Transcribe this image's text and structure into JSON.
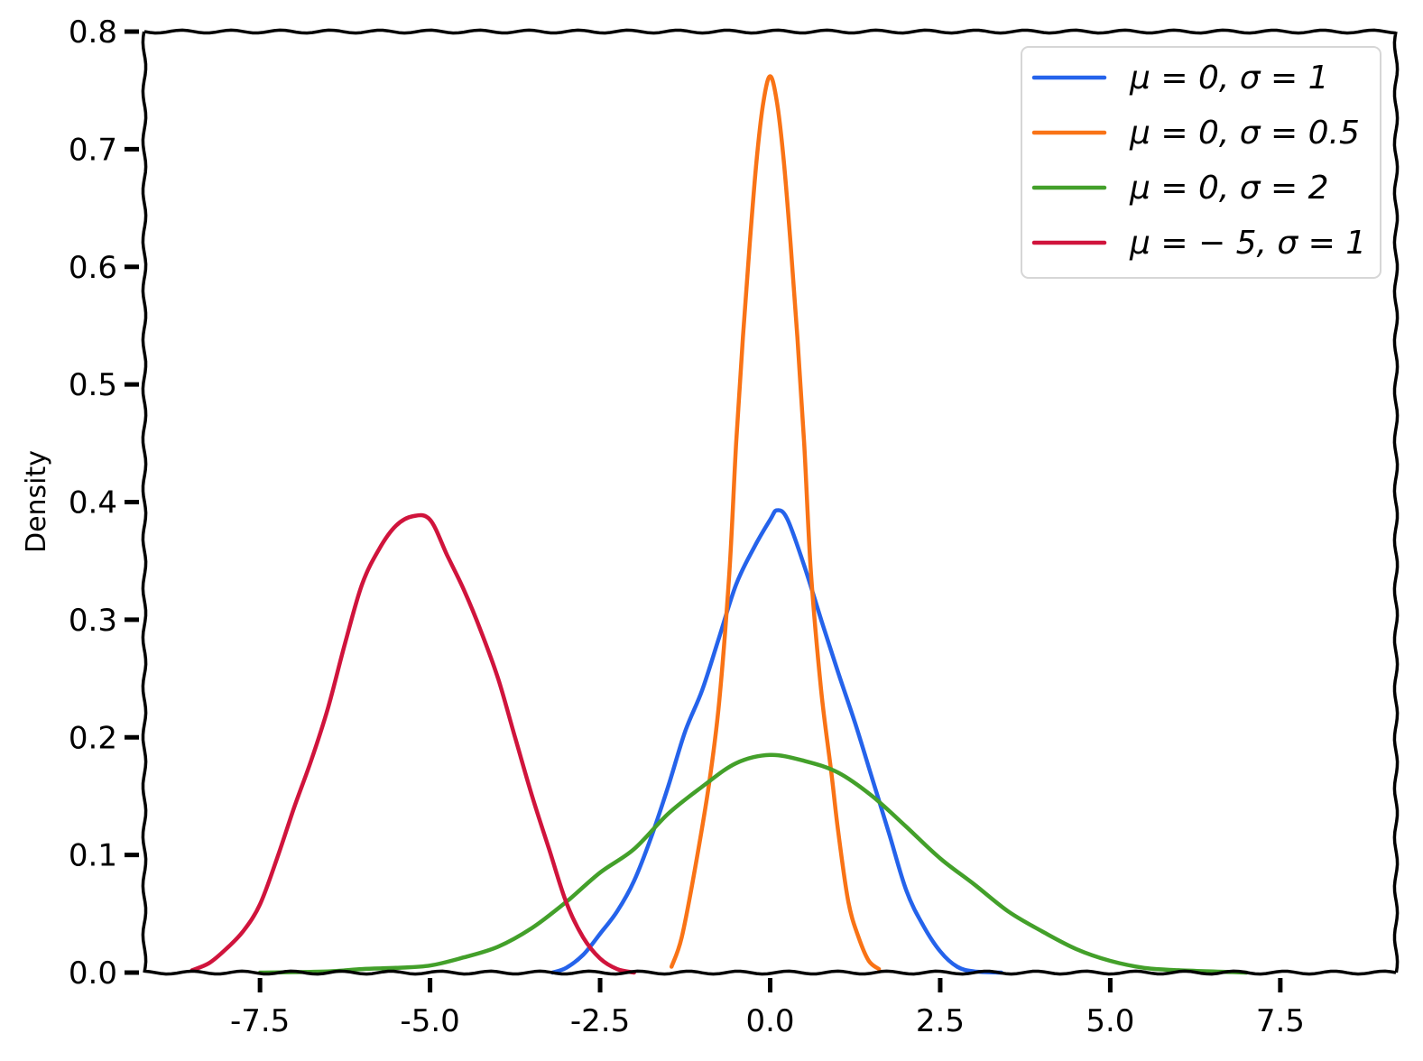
{
  "chart_data": {
    "type": "line",
    "title": "",
    "xlabel": "",
    "ylabel": "Density",
    "xlim": [
      -9.2,
      9.2
    ],
    "ylim": [
      0.0,
      0.8
    ],
    "x_ticks": [
      -7.5,
      -5.0,
      -2.5,
      0.0,
      2.5,
      5.0,
      7.5
    ],
    "x_tick_labels": [
      "-7.5",
      "-5.0",
      "-2.5",
      "0.0",
      "2.5",
      "5.0",
      "7.5"
    ],
    "y_ticks": [
      0.0,
      0.1,
      0.2,
      0.3,
      0.4,
      0.5,
      0.6,
      0.7,
      0.8
    ],
    "y_tick_labels": [
      "0.0",
      "0.1",
      "0.2",
      "0.3",
      "0.4",
      "0.5",
      "0.6",
      "0.7",
      "0.8"
    ],
    "grid": false,
    "legend_position": "top-right",
    "series": [
      {
        "name": "μ = 0, σ = 1",
        "color": "#2563eb",
        "points": [
          [
            -3.2,
            0.0
          ],
          [
            -3.0,
            0.004
          ],
          [
            -2.75,
            0.015
          ],
          [
            -2.5,
            0.033
          ],
          [
            -2.25,
            0.052
          ],
          [
            -2.0,
            0.078
          ],
          [
            -1.75,
            0.115
          ],
          [
            -1.5,
            0.158
          ],
          [
            -1.25,
            0.205
          ],
          [
            -1.0,
            0.24
          ],
          [
            -0.75,
            0.285
          ],
          [
            -0.5,
            0.33
          ],
          [
            -0.25,
            0.36
          ],
          [
            0.0,
            0.385
          ],
          [
            0.1,
            0.393
          ],
          [
            0.25,
            0.386
          ],
          [
            0.5,
            0.346
          ],
          [
            0.75,
            0.3
          ],
          [
            1.0,
            0.255
          ],
          [
            1.25,
            0.212
          ],
          [
            1.5,
            0.165
          ],
          [
            1.75,
            0.118
          ],
          [
            2.0,
            0.07
          ],
          [
            2.25,
            0.04
          ],
          [
            2.5,
            0.018
          ],
          [
            2.75,
            0.005
          ],
          [
            3.0,
            0.001
          ],
          [
            3.4,
            0.0
          ]
        ]
      },
      {
        "name": "μ = 0, σ = 0.5",
        "color": "#f97316",
        "points": [
          [
            -1.45,
            0.005
          ],
          [
            -1.3,
            0.03
          ],
          [
            -1.1,
            0.09
          ],
          [
            -0.9,
            0.16
          ],
          [
            -0.75,
            0.23
          ],
          [
            -0.6,
            0.34
          ],
          [
            -0.5,
            0.45
          ],
          [
            -0.4,
            0.54
          ],
          [
            -0.3,
            0.62
          ],
          [
            -0.2,
            0.69
          ],
          [
            -0.1,
            0.74
          ],
          [
            0.0,
            0.762
          ],
          [
            0.1,
            0.74
          ],
          [
            0.2,
            0.69
          ],
          [
            0.3,
            0.62
          ],
          [
            0.4,
            0.54
          ],
          [
            0.5,
            0.45
          ],
          [
            0.6,
            0.34
          ],
          [
            0.75,
            0.24
          ],
          [
            0.9,
            0.17
          ],
          [
            1.0,
            0.12
          ],
          [
            1.15,
            0.06
          ],
          [
            1.3,
            0.03
          ],
          [
            1.45,
            0.01
          ],
          [
            1.6,
            0.003
          ]
        ]
      },
      {
        "name": "μ = 0, σ = 2",
        "color": "#43a02a",
        "points": [
          [
            -7.5,
            0.0
          ],
          [
            -6.5,
            0.001
          ],
          [
            -6.0,
            0.003
          ],
          [
            -5.5,
            0.004
          ],
          [
            -5.0,
            0.006
          ],
          [
            -4.5,
            0.013
          ],
          [
            -4.0,
            0.022
          ],
          [
            -3.5,
            0.038
          ],
          [
            -3.0,
            0.06
          ],
          [
            -2.5,
            0.085
          ],
          [
            -2.0,
            0.105
          ],
          [
            -1.5,
            0.135
          ],
          [
            -1.0,
            0.158
          ],
          [
            -0.5,
            0.178
          ],
          [
            0.0,
            0.185
          ],
          [
            0.5,
            0.18
          ],
          [
            1.0,
            0.17
          ],
          [
            1.5,
            0.15
          ],
          [
            2.0,
            0.124
          ],
          [
            2.5,
            0.097
          ],
          [
            3.0,
            0.075
          ],
          [
            3.5,
            0.052
          ],
          [
            4.0,
            0.035
          ],
          [
            4.5,
            0.02
          ],
          [
            5.0,
            0.01
          ],
          [
            5.5,
            0.004
          ],
          [
            6.0,
            0.002
          ],
          [
            7.0,
            0.0
          ]
        ]
      },
      {
        "name": "μ = − 5, σ = 1",
        "color": "#d0143c",
        "points": [
          [
            -8.5,
            0.002
          ],
          [
            -8.25,
            0.008
          ],
          [
            -8.0,
            0.02
          ],
          [
            -7.75,
            0.035
          ],
          [
            -7.5,
            0.058
          ],
          [
            -7.25,
            0.097
          ],
          [
            -7.0,
            0.14
          ],
          [
            -6.75,
            0.18
          ],
          [
            -6.5,
            0.225
          ],
          [
            -6.25,
            0.28
          ],
          [
            -6.0,
            0.33
          ],
          [
            -5.75,
            0.36
          ],
          [
            -5.5,
            0.38
          ],
          [
            -5.25,
            0.388
          ],
          [
            -5.0,
            0.385
          ],
          [
            -4.75,
            0.355
          ],
          [
            -4.5,
            0.325
          ],
          [
            -4.25,
            0.29
          ],
          [
            -4.0,
            0.25
          ],
          [
            -3.75,
            0.2
          ],
          [
            -3.5,
            0.15
          ],
          [
            -3.25,
            0.105
          ],
          [
            -3.0,
            0.06
          ],
          [
            -2.75,
            0.03
          ],
          [
            -2.5,
            0.012
          ],
          [
            -2.25,
            0.003
          ],
          [
            -2.0,
            0.0
          ]
        ]
      }
    ]
  }
}
